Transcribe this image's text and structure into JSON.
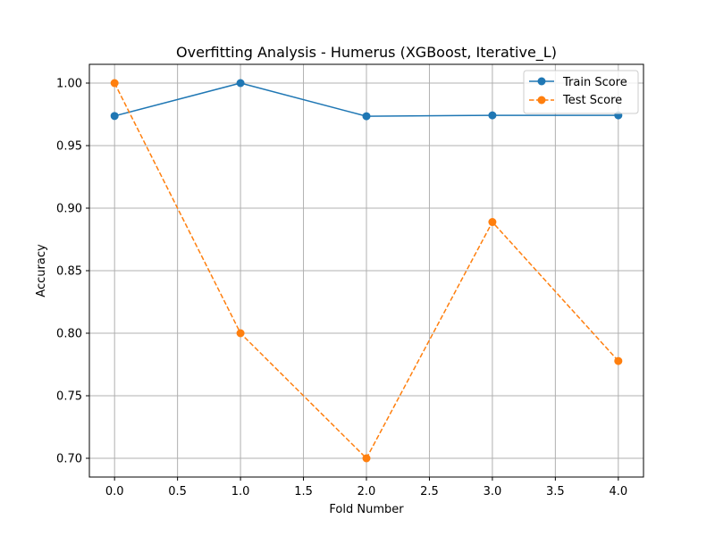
{
  "chart_data": {
    "type": "line",
    "title": "Overfitting Analysis - Humerus (XGBoost, Iterative_L)",
    "xlabel": "Fold Number",
    "ylabel": "Accuracy",
    "xlim": [
      -0.2,
      4.2
    ],
    "ylim": [
      0.685,
      1.015
    ],
    "x_ticks": [
      0.0,
      0.5,
      1.0,
      1.5,
      2.0,
      2.5,
      3.0,
      3.5,
      4.0
    ],
    "x_tick_labels": [
      "0.0",
      "0.5",
      "1.0",
      "1.5",
      "2.0",
      "2.5",
      "3.0",
      "3.5",
      "4.0"
    ],
    "y_ticks": [
      0.7,
      0.75,
      0.8,
      0.85,
      0.9,
      0.95,
      1.0
    ],
    "y_tick_labels": [
      "0.70",
      "0.75",
      "0.80",
      "0.85",
      "0.90",
      "0.95",
      "1.00"
    ],
    "grid": true,
    "legend_position": "top-right",
    "x": [
      0,
      1,
      2,
      3,
      4
    ],
    "series": [
      {
        "name": "Train Score",
        "values": [
          0.9737,
          1.0,
          0.9735,
          0.9742,
          0.9742
        ],
        "color": "#1f77b4",
        "line_style": "solid",
        "marker": "circle"
      },
      {
        "name": "Test Score",
        "values": [
          1.0,
          0.8,
          0.7,
          0.8889,
          0.7778
        ],
        "color": "#ff7f0e",
        "line_style": "dashed",
        "marker": "circle"
      }
    ]
  }
}
